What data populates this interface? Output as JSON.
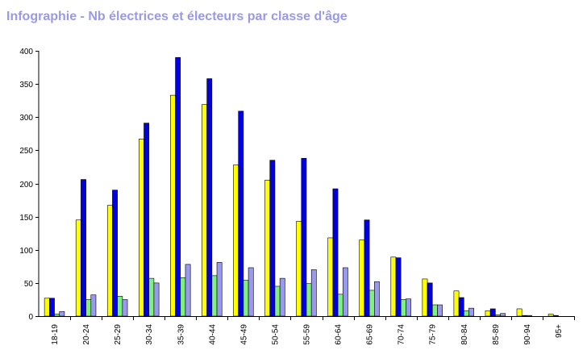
{
  "title": "Infographie - Nb électrices et électeurs par classe d'âge",
  "colors": {
    "title": "#9999e6",
    "series": [
      "#ffff00",
      "#0000e0",
      "#80f080",
      "#9999ee"
    ]
  },
  "chart_data": {
    "type": "bar",
    "title": "",
    "xlabel": "",
    "ylabel": "",
    "ylim": [
      0,
      400
    ],
    "yticks": [
      0,
      50,
      100,
      150,
      200,
      250,
      300,
      350,
      400
    ],
    "grid": false,
    "legend": "none",
    "categories": [
      "18-19",
      "20-24",
      "25-29",
      "30-34",
      "35-39",
      "40-44",
      "45-49",
      "50-54",
      "55-59",
      "60-64",
      "65-69",
      "70-74",
      "75-79",
      "80-84",
      "85-89",
      "90-94",
      "95+"
    ],
    "series": [
      {
        "values": [
          27,
          145,
          167,
          267,
          333,
          319,
          228,
          205,
          143,
          118,
          115,
          89,
          56,
          38,
          8,
          11,
          3
        ]
      },
      {
        "values": [
          27,
          206,
          190,
          291,
          390,
          358,
          309,
          235,
          238,
          192,
          145,
          88,
          50,
          28,
          11,
          1,
          1
        ]
      },
      {
        "values": [
          3,
          25,
          30,
          57,
          58,
          61,
          54,
          45,
          49,
          33,
          39,
          25,
          17,
          8,
          2,
          1,
          0
        ]
      },
      {
        "values": [
          7,
          32,
          25,
          50,
          78,
          81,
          73,
          57,
          70,
          73,
          52,
          26,
          17,
          12,
          4,
          0,
          0
        ]
      }
    ]
  }
}
